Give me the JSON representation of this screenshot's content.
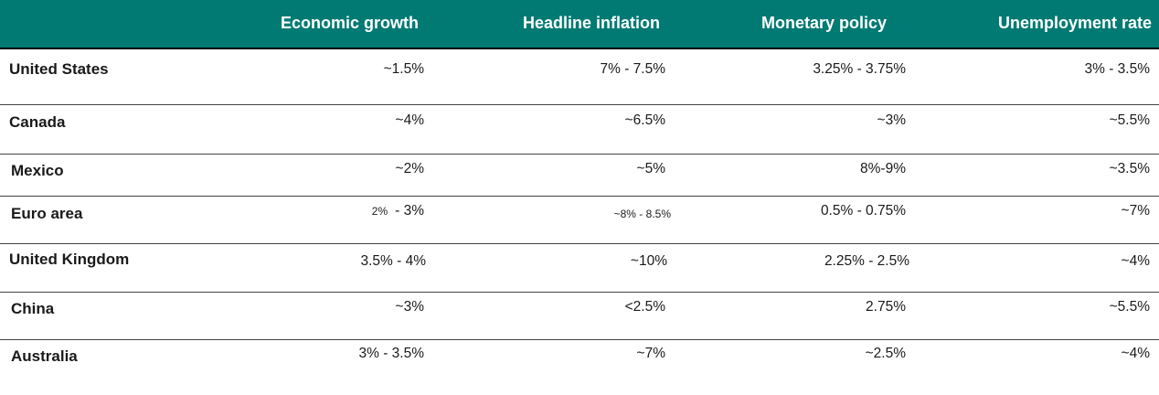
{
  "header": {
    "col0": "",
    "col1": "Economic growth",
    "col2": "Headline inflation",
    "col3": "Monetary policy",
    "col4": "Unemployment rate"
  },
  "rows": [
    {
      "country": "United States",
      "growth": "~1.5%",
      "inflation": "7% - 7.5%",
      "policy": "3.25% - 3.75%",
      "unemployment": "3% - 3.5%"
    },
    {
      "country": "Canada",
      "growth": "~4%",
      "inflation": "~6.5%",
      "policy": "~3%",
      "unemployment": "~5.5%"
    },
    {
      "country": "Mexico",
      "growth": "~2%",
      "inflation": "~5%",
      "policy": "8%-9%",
      "unemployment": "~3.5%"
    },
    {
      "country": "Euro area",
      "growth_a": "2%",
      "growth_b": "- 3%",
      "inflation": "~8% - 8.5%",
      "policy": "0.5% - 0.75%",
      "unemployment": "~7%"
    },
    {
      "country": "United Kingdom",
      "growth": "3.5% - 4%",
      "inflation": "~10%",
      "policy": "2.25% - 2.5%",
      "unemployment": "~4%"
    },
    {
      "country": "China",
      "growth": "~3%",
      "inflation": "<2.5%",
      "policy": "2.75%",
      "unemployment": "~5.5%"
    },
    {
      "country": "Australia",
      "growth": "3% - 3.5%",
      "inflation": "~7%",
      "policy": "~2.5%",
      "unemployment": "~4%"
    }
  ],
  "colors": {
    "header_bg": "#007a73",
    "header_text": "#ffffff"
  }
}
